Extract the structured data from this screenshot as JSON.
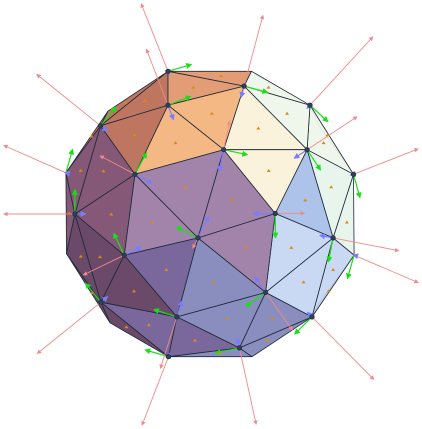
{
  "figure": {
    "kind": "triangulated-sphere-with-frame-vectors",
    "colors": {
      "background": "#ffffff",
      "edge": "#1f2a3a",
      "vertex": "#2e3f5c",
      "normal_vector": "#f08a8a",
      "tangent_vector_1": "#18e018",
      "tangent_vector_2": "#7b7bff",
      "face_marker": "#d98a1a"
    },
    "face_palette": {
      "orange_light": "#f3b27a",
      "orange": "#e0956a",
      "orange_dark": "#b86a52",
      "cream": "#fbf1d8",
      "mint": "#e6f4ec",
      "pale_green": "#eef6ea",
      "plum": "#7a4a6a",
      "plum_dark": "#5e3a5c",
      "mauve": "#9a7aa4",
      "violet": "#6f5a92",
      "slate_blue": "#7f84b8",
      "sky": "#a6bee8",
      "pale_blue": "#c4d6f2"
    }
  }
}
